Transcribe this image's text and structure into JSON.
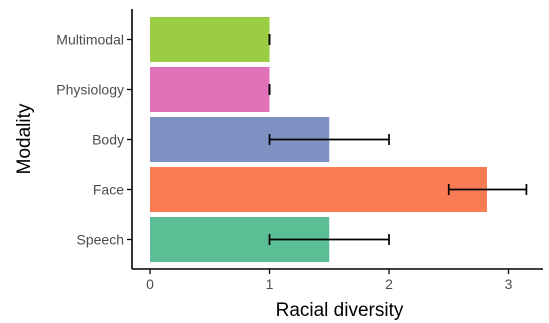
{
  "chart_data": {
    "type": "bar",
    "orientation": "horizontal",
    "xlabel": "Racial diversity",
    "ylabel": "Modality",
    "xlim": [
      -0.15,
      3.3
    ],
    "xticks": [
      "0",
      "1",
      "2",
      "3"
    ],
    "grid": false,
    "legend": "none",
    "categories": [
      "Multimodal",
      "Physiology",
      "Body",
      "Face",
      "Speech"
    ],
    "values": [
      1.0,
      1.0,
      1.5,
      2.82,
      1.5
    ],
    "error_low": [
      1.0,
      1.0,
      1.0,
      2.5,
      1.0
    ],
    "error_high": [
      1.0,
      1.0,
      2.0,
      3.15,
      2.0
    ],
    "colors": [
      "#9acd43",
      "#df72b8",
      "#7f91c3",
      "#f97c54",
      "#5bbe95"
    ]
  }
}
